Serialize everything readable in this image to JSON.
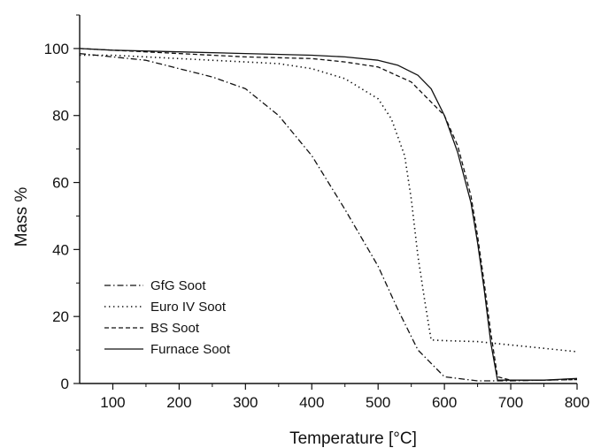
{
  "chart_data": {
    "type": "line",
    "xlabel": "Temperature [°C]",
    "ylabel": "Mass %",
    "xlim": [
      50,
      800
    ],
    "ylim": [
      0,
      110
    ],
    "x_ticks": [
      100,
      200,
      300,
      400,
      500,
      600,
      700,
      800
    ],
    "y_ticks": [
      0,
      20,
      40,
      60,
      80,
      100
    ],
    "grid": false,
    "legend_position": "bottom-left",
    "series": [
      {
        "name": "GfG Soot",
        "line_style": "dash-dot",
        "x": [
          50,
          100,
          150,
          200,
          250,
          300,
          350,
          400,
          450,
          500,
          530,
          560,
          600,
          650,
          700,
          750,
          800
        ],
        "y": [
          98.5,
          97.5,
          96.5,
          94,
          91.5,
          88,
          80,
          68,
          52,
          35,
          22,
          10,
          2,
          0.8,
          0.8,
          1,
          1.2
        ]
      },
      {
        "name": "Euro IV Soot",
        "line_style": "dotted",
        "x": [
          50,
          100,
          150,
          200,
          250,
          300,
          350,
          400,
          450,
          500,
          520,
          540,
          550,
          560,
          570,
          580,
          600,
          650,
          700,
          750,
          800
        ],
        "y": [
          98,
          98,
          97.5,
          97,
          96.5,
          96,
          95.5,
          94,
          91,
          85,
          79,
          68,
          55,
          38,
          25,
          13,
          12.8,
          12.5,
          11.5,
          10.5,
          9.5
        ]
      },
      {
        "name": "BS Soot",
        "line_style": "dashed",
        "x": [
          50,
          100,
          150,
          200,
          300,
          400,
          450,
          500,
          550,
          600,
          620,
          640,
          650,
          660,
          670,
          680,
          700,
          750,
          800
        ],
        "y": [
          100,
          99.5,
          99,
          98.5,
          97.5,
          97,
          96,
          94.5,
          90,
          80,
          71,
          56,
          44,
          30,
          15,
          2,
          1,
          1,
          1.2
        ]
      },
      {
        "name": "Furnace Soot",
        "line_style": "solid",
        "x": [
          50,
          100,
          200,
          300,
          400,
          450,
          500,
          530,
          560,
          580,
          600,
          620,
          640,
          650,
          660,
          670,
          680,
          700,
          750,
          800
        ],
        "y": [
          100,
          99.5,
          99,
          98.5,
          98,
          97.5,
          96.5,
          95,
          92,
          88,
          80,
          69,
          54,
          42,
          28,
          12,
          1,
          1,
          1,
          1.5
        ]
      }
    ]
  }
}
